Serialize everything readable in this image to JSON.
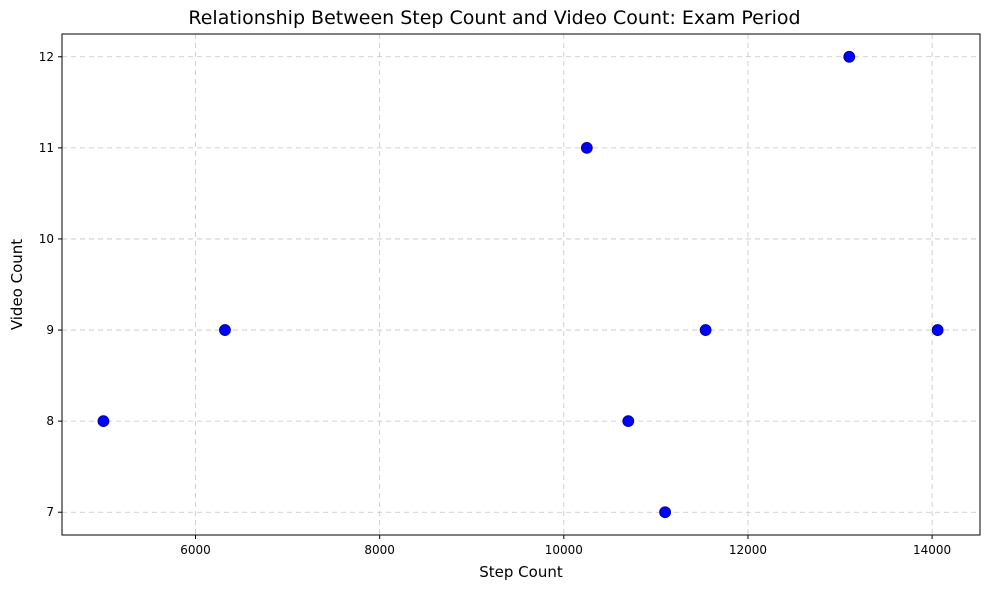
{
  "chart_data": {
    "type": "scatter",
    "title": "Relationship Between Step Count and Video Count: Exam Period",
    "xlabel": "Step Count",
    "ylabel": "Video Count",
    "xlim": [
      4550,
      14520
    ],
    "ylim": [
      6.75,
      12.25
    ],
    "xticks": [
      6000,
      8000,
      10000,
      12000,
      14000
    ],
    "yticks": [
      7,
      8,
      9,
      10,
      11,
      12
    ],
    "grid": true,
    "marker_color": "#0000ff",
    "x": [
      5000,
      6320,
      10250,
      10700,
      11100,
      11540,
      13100,
      14060
    ],
    "y": [
      8,
      9,
      11,
      8,
      7,
      9,
      12,
      9
    ]
  }
}
